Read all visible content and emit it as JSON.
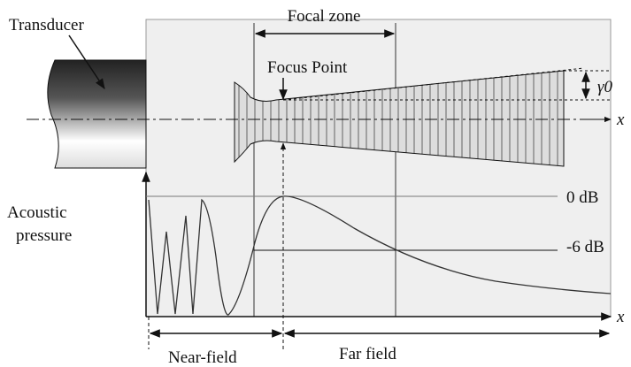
{
  "labels": {
    "transducer": "Transducer",
    "focal_zone": "Focal zone",
    "focus_point": "Focus Point",
    "gamma": "γ0",
    "axis_top": "x",
    "axis_bottom": "x",
    "acoustic_line1": "Acoustic",
    "acoustic_line2": "pressure",
    "zero_db": "0 dB",
    "minus_six_db": "-6 dB",
    "near_field": "Near-field",
    "far_field": "Far field"
  }
}
